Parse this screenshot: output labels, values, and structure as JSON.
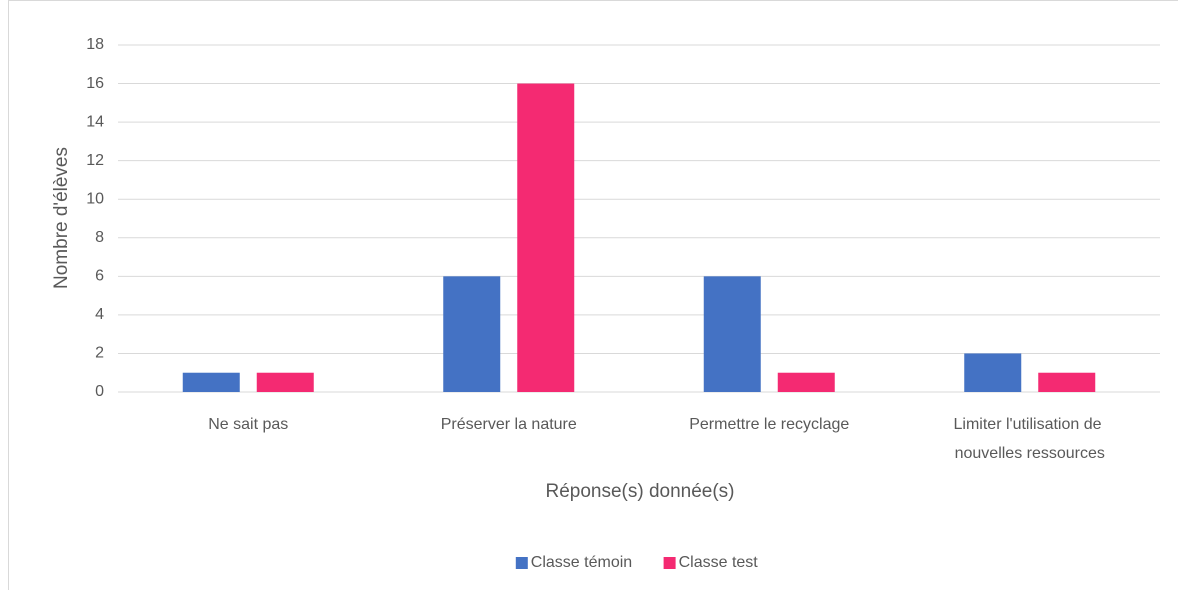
{
  "chart_data": {
    "type": "bar",
    "x_label": "Réponse(s) donnée(s)",
    "y_label": "Nombre d'élèves",
    "categories": [
      "Ne sait pas",
      "Préserver la nature",
      "Permettre le recyclage",
      "Limiter l'utilisation de nouvelles ressources"
    ],
    "series": [
      {
        "name": "Classe témoin",
        "color": "#4472c4",
        "values": [
          1,
          6,
          6,
          2
        ]
      },
      {
        "name": "Classe test",
        "color": "#f42a72",
        "values": [
          1,
          16,
          1,
          1
        ]
      }
    ],
    "ylim": [
      0,
      18
    ],
    "yticks": [
      0,
      2,
      4,
      6,
      8,
      10,
      12,
      14,
      16,
      18
    ],
    "grid": true,
    "legend": "bottom"
  }
}
